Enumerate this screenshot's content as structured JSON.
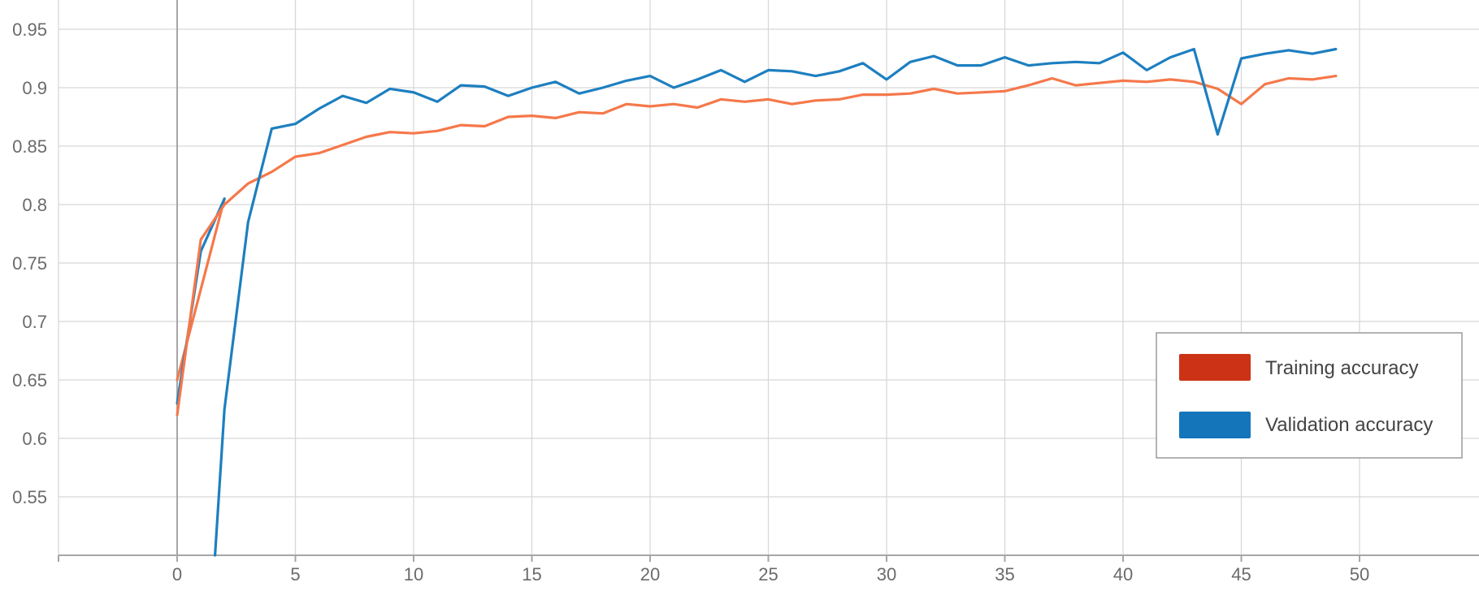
{
  "chart_data": {
    "type": "line",
    "title": "",
    "xlabel": "",
    "ylabel": "",
    "xlim": [
      -5,
      54
    ],
    "ylim": [
      0.5,
      0.97
    ],
    "x_ticks": [
      0,
      5,
      10,
      15,
      20,
      25,
      30,
      35,
      40,
      45,
      50
    ],
    "y_ticks": [
      0.55,
      0.6,
      0.65,
      0.7,
      0.75,
      0.8,
      0.85,
      0.9,
      0.95
    ],
    "grid": true,
    "legend_position": "bottom-right",
    "series": [
      {
        "name": "Training accuracy",
        "legend_color": "#cc3316",
        "line_color": "#f5784a",
        "x": [
          0,
          1,
          2,
          3,
          4,
          5,
          6,
          7,
          8,
          9,
          10,
          11,
          12,
          13,
          14,
          15,
          16,
          17,
          18,
          19,
          20,
          21,
          22,
          23,
          24,
          25,
          26,
          27,
          28,
          29,
          30,
          31,
          32,
          33,
          34,
          35,
          36,
          37,
          38,
          39,
          40,
          41,
          42,
          43,
          44,
          45,
          46,
          47,
          48,
          49
        ],
        "y": [
          0.62,
          0.77,
          0.8,
          0.818,
          0.828,
          0.841,
          0.844,
          0.851,
          0.858,
          0.862,
          0.861,
          0.863,
          0.868,
          0.867,
          0.875,
          0.876,
          0.874,
          0.879,
          0.878,
          0.886,
          0.884,
          0.886,
          0.883,
          0.89,
          0.888,
          0.89,
          0.886,
          0.889,
          0.89,
          0.894,
          0.894,
          0.895,
          0.899,
          0.895,
          0.896,
          0.897,
          0.902,
          0.908,
          0.902,
          0.904,
          0.906,
          0.905,
          0.907,
          0.905,
          0.899,
          0.886,
          0.903,
          0.908,
          0.907,
          0.91
        ]
      },
      {
        "name": "Validation accuracy",
        "legend_color": "#1575bb",
        "line_color": "#1d7fc0",
        "x": [
          1.6,
          2,
          3,
          4,
          5,
          6,
          7,
          8,
          9,
          10,
          11,
          12,
          13,
          14,
          15,
          16,
          17,
          18,
          19,
          20,
          21,
          22,
          23,
          24,
          25,
          26,
          27,
          28,
          29,
          30,
          31,
          32,
          33,
          34,
          35,
          36,
          37,
          38,
          39,
          40,
          41,
          42,
          43,
          44,
          45,
          46,
          47,
          48,
          49
        ],
        "y": [
          0.5,
          0.625,
          0.785,
          0.865,
          0.869,
          0.882,
          0.893,
          0.887,
          0.899,
          0.896,
          0.888,
          0.902,
          0.901,
          0.893,
          0.9,
          0.905,
          0.895,
          0.9,
          0.906,
          0.91,
          0.9,
          0.907,
          0.915,
          0.905,
          0.915,
          0.914,
          0.91,
          0.914,
          0.921,
          0.907,
          0.922,
          0.927,
          0.919,
          0.919,
          0.926,
          0.919,
          0.921,
          0.922,
          0.921,
          0.93,
          0.915,
          0.926,
          0.933,
          0.86,
          0.925,
          0.929,
          0.932,
          0.929,
          0.933
        ]
      }
    ],
    "extra_segments": [
      {
        "series": "Training accuracy",
        "x": [
          0,
          2
        ],
        "y": [
          0.65,
          0.805
        ]
      },
      {
        "series": "Validation accuracy",
        "x": [
          0,
          1,
          2
        ],
        "y": [
          0.63,
          0.76,
          0.805
        ]
      }
    ]
  }
}
